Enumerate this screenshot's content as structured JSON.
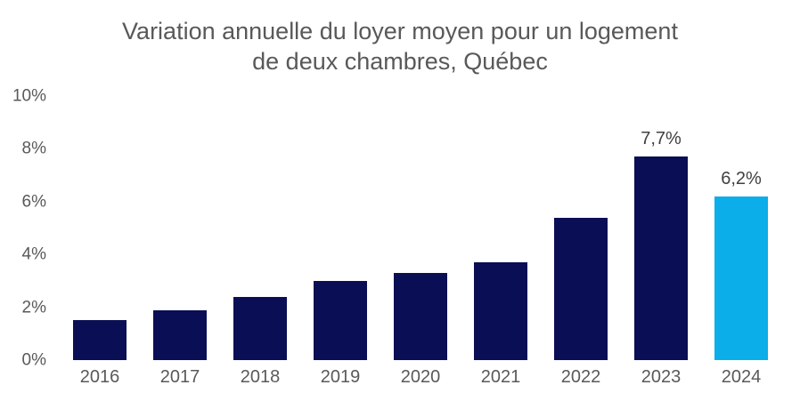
{
  "chart_data": {
    "type": "bar",
    "title": "Variation annuelle du loyer moyen pour un logement de deux chambres, Québec",
    "title_lines": [
      "Variation annuelle du loyer moyen pour un logement",
      "de deux chambres, Québec"
    ],
    "categories": [
      "2016",
      "2017",
      "2018",
      "2019",
      "2020",
      "2021",
      "2022",
      "2023",
      "2024"
    ],
    "values": [
      1.5,
      1.9,
      2.4,
      3.0,
      3.3,
      3.7,
      5.4,
      7.7,
      6.2
    ],
    "data_labels": [
      null,
      null,
      null,
      null,
      null,
      null,
      null,
      "7,7%",
      "6,2%"
    ],
    "highlight_index": 8,
    "xlabel": "",
    "ylabel": "",
    "ylim": [
      0,
      10
    ],
    "ytick_step": 2,
    "ytick_labels": [
      "0%",
      "2%",
      "4%",
      "6%",
      "8%",
      "10%"
    ],
    "grid": false,
    "legend": false,
    "axis_lines": false
  },
  "colors": {
    "bar_default": "#0A0E54",
    "bar_highlight": "#0CAEEA",
    "title_text": "#595959",
    "axis_text": "#595959",
    "data_label_text": "#404040",
    "background": "#FFFFFF"
  }
}
